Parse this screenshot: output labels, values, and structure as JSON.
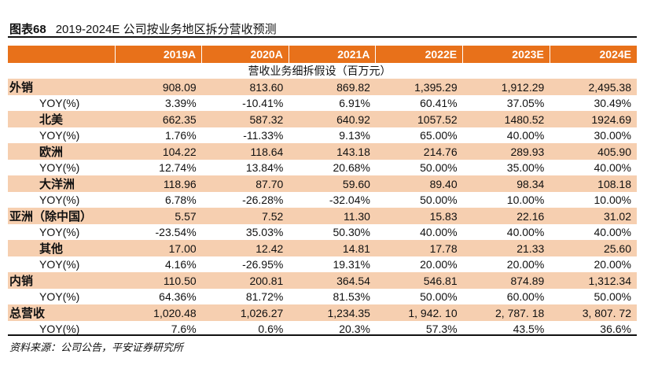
{
  "title": {
    "fig": "图表68",
    "text": "2019-2024E 公司按业务地区拆分营收预测"
  },
  "header": [
    "",
    "2019A",
    "2020A",
    "2021A",
    "2022E",
    "2023E",
    "2024E"
  ],
  "caption": "营收业务细拆假设（百万元）",
  "rows": [
    {
      "label": "外销",
      "values": [
        "908.09",
        "813.60",
        "869.82",
        "1,395.29",
        "1,912.29",
        "2,495.38"
      ]
    },
    {
      "label": "YOY(%)",
      "values": [
        "3.39%",
        "-10.41%",
        "6.91%",
        "60.41%",
        "37.05%",
        "30.49%"
      ]
    },
    {
      "label": "北美",
      "values": [
        "662.35",
        "587.32",
        "640.92",
        "1057.52",
        "1480.52",
        "1924.69"
      ]
    },
    {
      "label": "YOY(%)",
      "values": [
        "1.76%",
        "-11.33%",
        "9.13%",
        "65.00%",
        "40.00%",
        "30.00%"
      ]
    },
    {
      "label": "欧洲",
      "values": [
        "104.22",
        "118.64",
        "143.18",
        "214.76",
        "289.93",
        "405.90"
      ]
    },
    {
      "label": "YOY(%)",
      "values": [
        "12.74%",
        "13.84%",
        "20.68%",
        "50.00%",
        "35.00%",
        "40.00%"
      ]
    },
    {
      "label": "大洋洲",
      "values": [
        "118.96",
        "87.70",
        "59.60",
        "89.40",
        "98.34",
        "108.18"
      ]
    },
    {
      "label": "YOY(%)",
      "values": [
        "6.78%",
        "-26.28%",
        "-32.04%",
        "50.00%",
        "10.00%",
        "10.00%"
      ]
    },
    {
      "label": "亚洲（除中国）",
      "values": [
        "5.57",
        "7.52",
        "11.30",
        "15.83",
        "22.16",
        "31.02"
      ]
    },
    {
      "label": "YOY(%)",
      "values": [
        "-23.54%",
        "35.03%",
        "50.30%",
        "40.00%",
        "40.00%",
        "40.00%"
      ]
    },
    {
      "label": "其他",
      "values": [
        "17.00",
        "12.42",
        "14.81",
        "17.78",
        "21.33",
        "25.60"
      ]
    },
    {
      "label": "YOY(%)",
      "values": [
        "4.16%",
        "-26.95%",
        "19.31%",
        "20.00%",
        "20.00%",
        "20.00%"
      ]
    },
    {
      "label": "内销",
      "values": [
        "110.50",
        "200.81",
        "364.54",
        "546.81",
        "874.89",
        "1,312.34"
      ]
    },
    {
      "label": "YOY(%)",
      "values": [
        "64.36%",
        "81.72%",
        "81.53%",
        "50.00%",
        "60.00%",
        "50.00%"
      ]
    },
    {
      "label": "总营收",
      "values": [
        "1,020.48",
        "1,026.27",
        "1,234.35",
        "1, 942. 10",
        "2, 787. 18",
        "3, 807. 72"
      ]
    },
    {
      "label": "YOY(%)",
      "values": [
        "7.6%",
        "0.6%",
        "20.3%",
        "57.3%",
        "43.5%",
        "36.6%"
      ]
    }
  ],
  "source": "资料来源：公司公告，平安证券研究所"
}
